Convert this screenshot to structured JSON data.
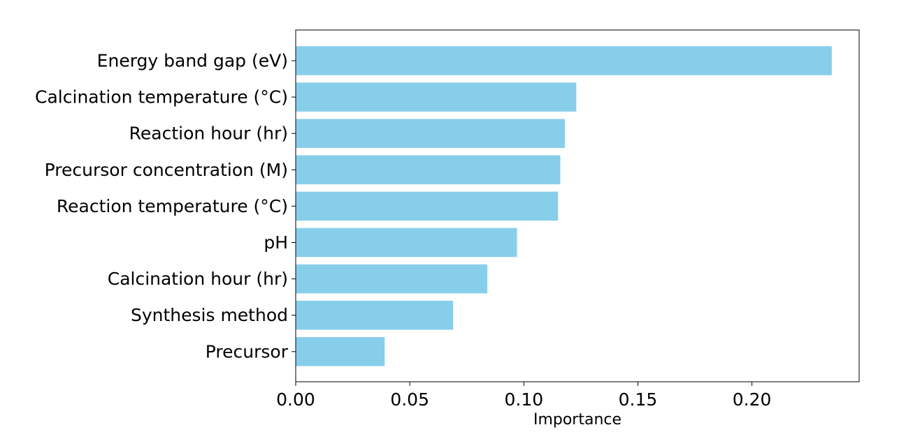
{
  "chart_data": {
    "type": "bar",
    "orientation": "horizontal",
    "title": "",
    "xlabel": "Importance",
    "ylabel": "",
    "xlim": [
      0,
      0.247
    ],
    "xticks": [
      0.0,
      0.05,
      0.1,
      0.15,
      0.2
    ],
    "xtick_labels": [
      "0.00",
      "0.05",
      "0.10",
      "0.15",
      "0.20"
    ],
    "categories": [
      "Energy band gap (eV)",
      "Calcination temperature (°C)",
      "Reaction hour (hr)",
      "Precursor concentration (M)",
      "Reaction temperature (°C)",
      "pH",
      "Calcination hour (hr)",
      "Synthesis method",
      "Precursor"
    ],
    "values": [
      0.235,
      0.123,
      0.118,
      0.116,
      0.115,
      0.097,
      0.084,
      0.069,
      0.039
    ],
    "grid": false,
    "legend": "none",
    "bar_color": "#87ceeb"
  }
}
